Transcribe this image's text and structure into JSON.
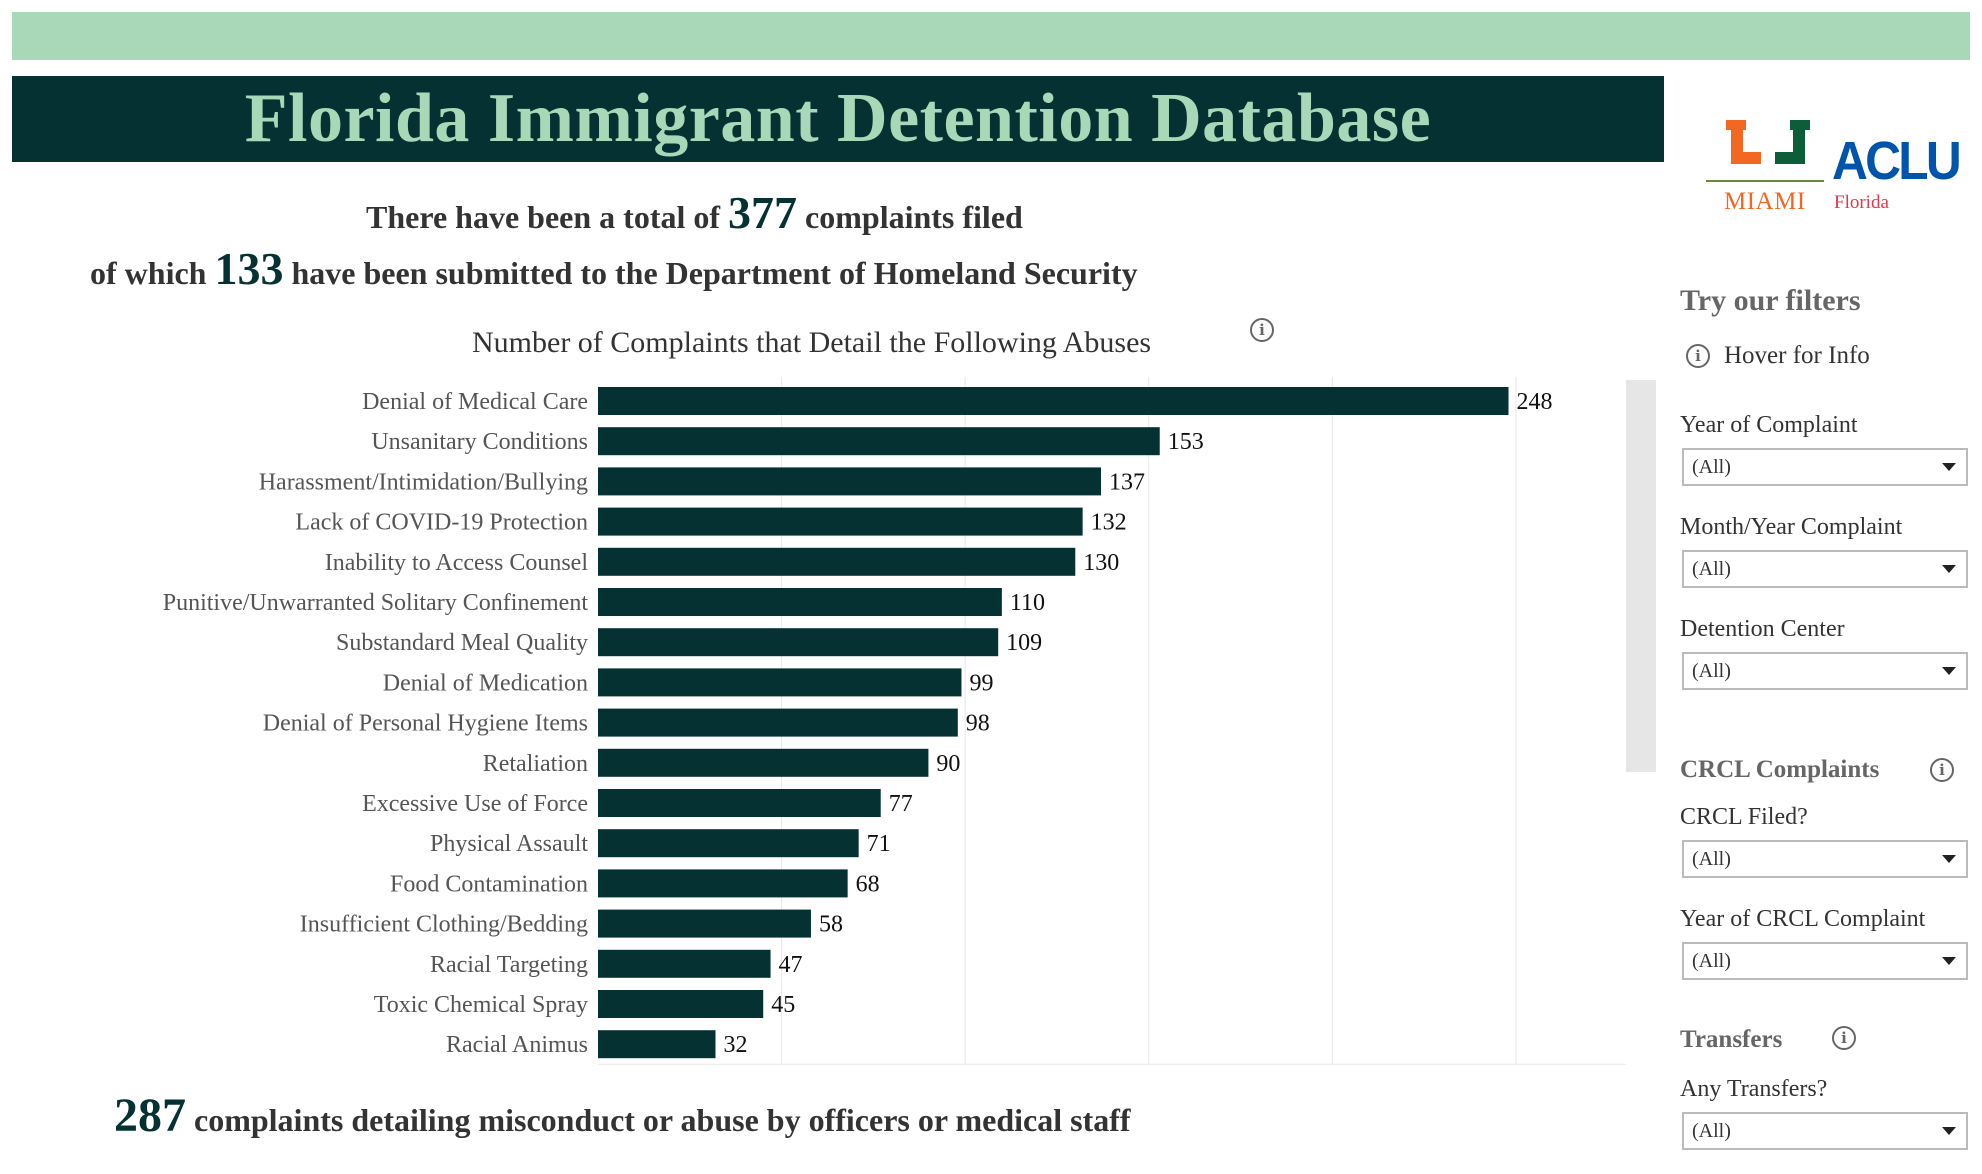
{
  "header": {
    "title": "Florida Immigrant Detention Database"
  },
  "logos": {
    "miami_text": "MIAMI",
    "aclu_text": "ACLU",
    "aclu_sub": "Florida",
    "miami_colors": [
      "#f26722",
      "#0b5e38"
    ]
  },
  "summary": {
    "line1_pre": "There have been a total of",
    "total_complaints": "377",
    "line1_post": "complaints filed",
    "line2_pre": "of which",
    "dhs_complaints": "133",
    "line2_post": "have been submitted to the Department of Homeland Security"
  },
  "chart_data": {
    "type": "bar",
    "orientation": "horizontal",
    "title": "Number of Complaints that Detail the Following Abuses",
    "categories": [
      "Denial of Medical Care",
      "Unsanitary Conditions",
      "Harassment/Intimidation/Bullying",
      "Lack of COVID-19 Protection",
      "Inability to Access Counsel",
      "Punitive/Unwarranted Solitary Confinement",
      "Substandard Meal Quality",
      "Denial of Medication",
      "Denial of Personal Hygiene Items",
      "Retaliation",
      "Excessive Use of Force",
      "Physical Assault",
      "Food Contamination",
      "Insufficient Clothing/Bedding",
      "Racial Targeting",
      "Toxic Chemical Spray",
      "Racial Animus"
    ],
    "values": [
      248,
      153,
      137,
      132,
      130,
      110,
      109,
      99,
      98,
      90,
      77,
      71,
      68,
      58,
      47,
      45,
      32
    ],
    "xlim": [
      0,
      280
    ],
    "grid": true,
    "bar_color": "#063132"
  },
  "footer": {
    "misconduct_count": "287",
    "misconduct_text": "complaints detailing misconduct or abuse by officers or medical staff"
  },
  "filters": {
    "heading": "Try our filters",
    "hover_info": "Hover for Info",
    "year_of_complaint": {
      "label": "Year of Complaint",
      "value": "(All)"
    },
    "month_year_complaint": {
      "label": "Month/Year Complaint",
      "value": "(All)"
    },
    "detention_center": {
      "label": "Detention Center",
      "value": "(All)"
    },
    "crcl_section": "CRCL Complaints",
    "crcl_filed": {
      "label": "CRCL Filed?",
      "value": "(All)"
    },
    "year_of_crcl": {
      "label": "Year of CRCL Complaint",
      "value": "(All)"
    },
    "transfers_section": "Transfers",
    "any_transfers": {
      "label": "Any Transfers?",
      "value": "(All)"
    }
  },
  "icons": {
    "info": "info-icon",
    "dropdown": "chevron-down-icon"
  },
  "colors": {
    "accent_green": "#a8d8b8",
    "dark_teal": "#063132"
  }
}
